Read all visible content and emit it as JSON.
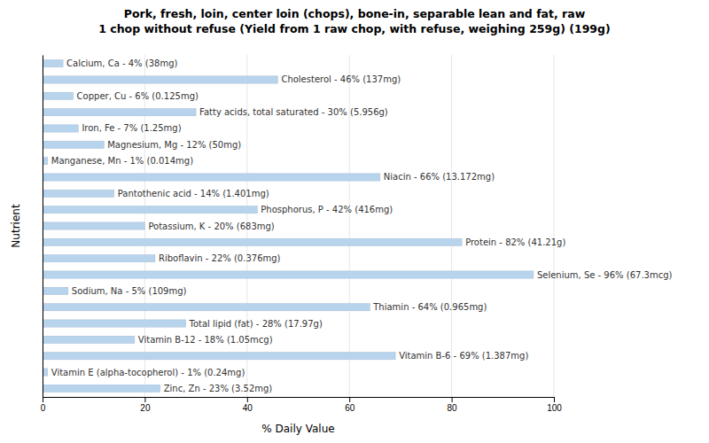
{
  "chart_data": {
    "type": "bar",
    "orientation": "horizontal",
    "title": "Pork, fresh, loin, center loin (chops), bone-in, separable lean and fat, raw\n1 chop without refuse (Yield from 1 raw chop, with refuse, weighing 259g) (199g)",
    "xlabel": "% Daily Value",
    "ylabel": "Nutrient",
    "categories": [
      "Calcium, Ca - 4% (38mg)",
      "Cholesterol - 46% (137mg)",
      "Copper, Cu - 6% (0.125mg)",
      "Fatty acids, total saturated - 30% (5.956g)",
      "Iron, Fe - 7% (1.25mg)",
      "Magnesium, Mg - 12% (50mg)",
      "Manganese, Mn - 1% (0.014mg)",
      "Niacin - 66% (13.172mg)",
      "Pantothenic acid - 14% (1.401mg)",
      "Phosphorus, P - 42% (416mg)",
      "Potassium, K - 20% (683mg)",
      "Protein - 82% (41.21g)",
      "Riboflavin - 22% (0.376mg)",
      "Selenium, Se - 96% (67.3mcg)",
      "Sodium, Na - 5% (109mg)",
      "Thiamin - 64% (0.965mg)",
      "Total lipid (fat) - 28% (17.97g)",
      "Vitamin B-12 - 18% (1.05mcg)",
      "Vitamin B-6 - 69% (1.387mg)",
      "Vitamin E (alpha-tocopherol) - 1% (0.24mg)",
      "Zinc, Zn - 23% (3.52mg)"
    ],
    "values": [
      4,
      46,
      6,
      30,
      7,
      12,
      1,
      66,
      14,
      42,
      20,
      82,
      22,
      96,
      5,
      64,
      28,
      18,
      69,
      1,
      23
    ],
    "color": "#b8d4ed",
    "xlim": [
      0,
      100
    ],
    "xticks": [
      0,
      20,
      40,
      60,
      80,
      100
    ],
    "grid": true,
    "tick_labels": "x"
  }
}
